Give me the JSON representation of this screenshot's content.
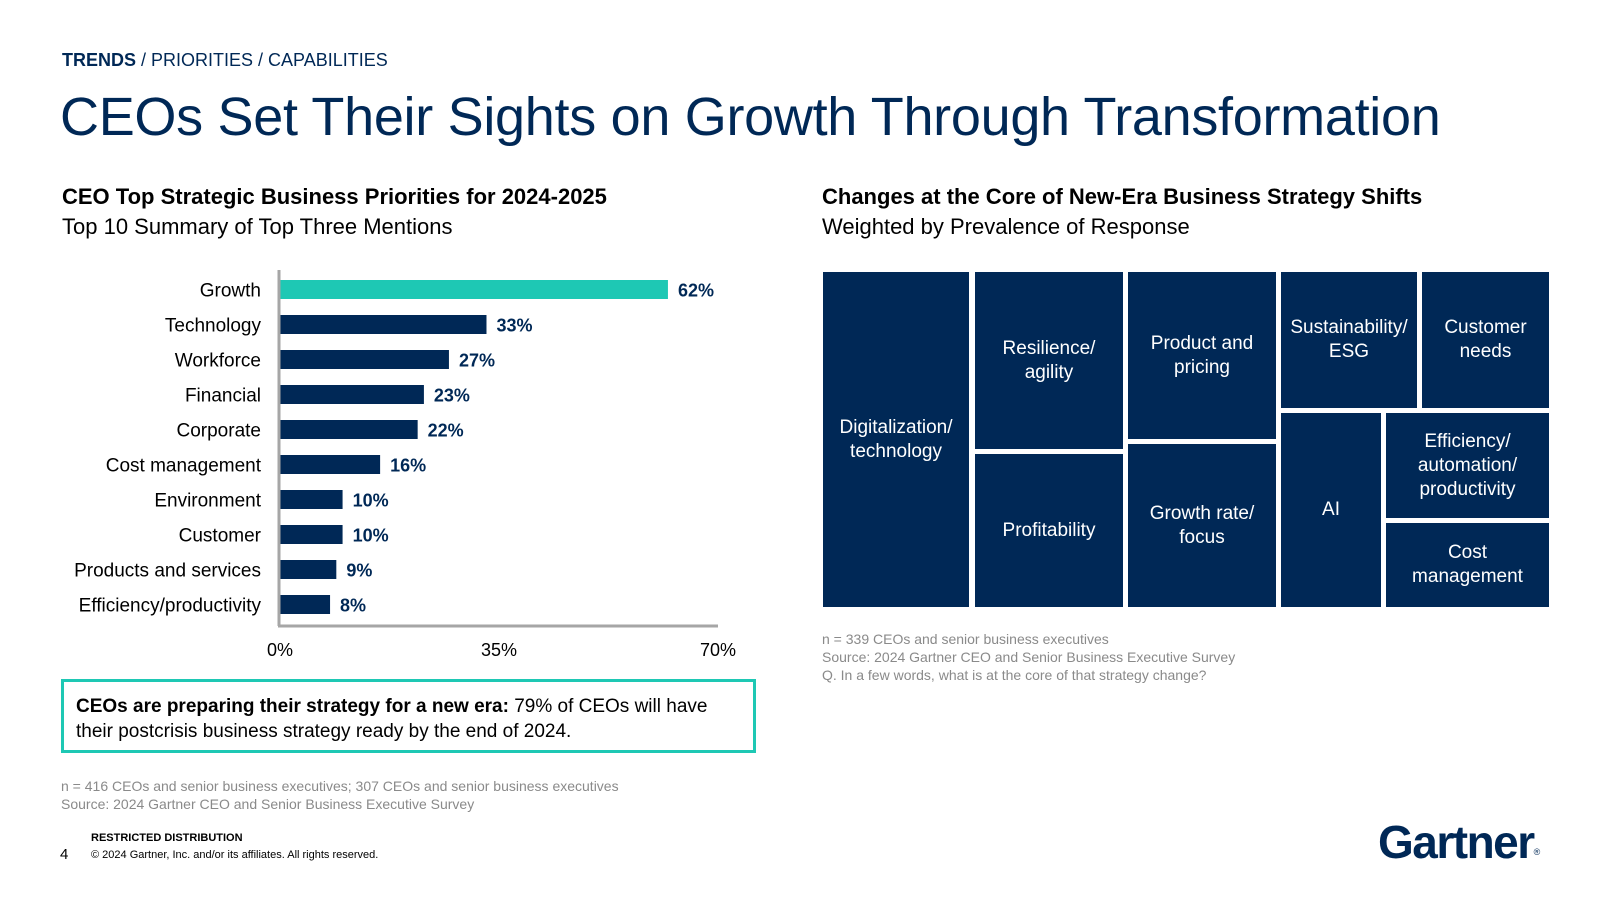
{
  "breadcrumb": {
    "bold": "TRENDS",
    "rest": " / PRIORITIES / CAPABILITIES"
  },
  "page_title": "CEOs Set Their Sights on Growth Through Transformation",
  "left": {
    "title": "CEO Top Strategic Business Priorities for 2024-2025",
    "subtitle": "Top 10 Summary of Top Three Mentions",
    "callout_lead": "CEOs are preparing their strategy for a new era:",
    "callout_rest": " 79% of CEOs will have their postcrisis business strategy ready by the end of 2024.",
    "note1": "n = 416 CEOs and senior business executives; 307 CEOs and senior business executives",
    "note2": "Source: 2024 Gartner CEO and Senior Business Executive Survey"
  },
  "right": {
    "title": "Changes at the Core of New-Era Business Strategy Shifts",
    "subtitle": "Weighted by Prevalence of Response",
    "note1": "n = 339 CEOs and senior business executives",
    "note2": "Source: 2024 Gartner CEO and Senior Business Executive Survey",
    "note3": "Q. In a few words, what is at the core of that strategy change?"
  },
  "colors": {
    "highlight": "#1ec8b4",
    "navy": "#002856"
  },
  "chart_data": [
    {
      "type": "bar",
      "orientation": "horizontal",
      "categories": [
        "Growth",
        "Technology",
        "Workforce",
        "Financial",
        "Corporate",
        "Cost management",
        "Environment",
        "Customer",
        "Products and services",
        "Efficiency/productivity"
      ],
      "values": [
        62,
        33,
        27,
        23,
        22,
        16,
        10,
        10,
        9,
        8
      ],
      "value_labels": [
        "62%",
        "33%",
        "27%",
        "23%",
        "22%",
        "16%",
        "10%",
        "10%",
        "9%",
        "8%"
      ],
      "xlim": [
        0,
        70
      ],
      "xticks": [
        0,
        35,
        70
      ],
      "xtick_labels": [
        "0%",
        "35%",
        "70%"
      ],
      "highlight_index": 0,
      "grid": false
    },
    {
      "type": "treemap",
      "tiles": [
        "Digitalization/\ntechnology",
        "Resilience/\nagility",
        "Profitability",
        "Product and\npricing",
        "Growth rate/\nfocus",
        "Sustainability/\nESG",
        "Customer\nneeds",
        "AI",
        "Efficiency/\nautomation/\nproductivity",
        "Cost\nmanagement"
      ]
    }
  ],
  "footer": {
    "restricted": "RESTRICTED DISTRIBUTION",
    "copyright": "© 2024 Gartner, Inc. and/or its affiliates. All rights reserved.",
    "page_number": "4",
    "logo": "Gartner",
    "logo_mark": "®"
  }
}
